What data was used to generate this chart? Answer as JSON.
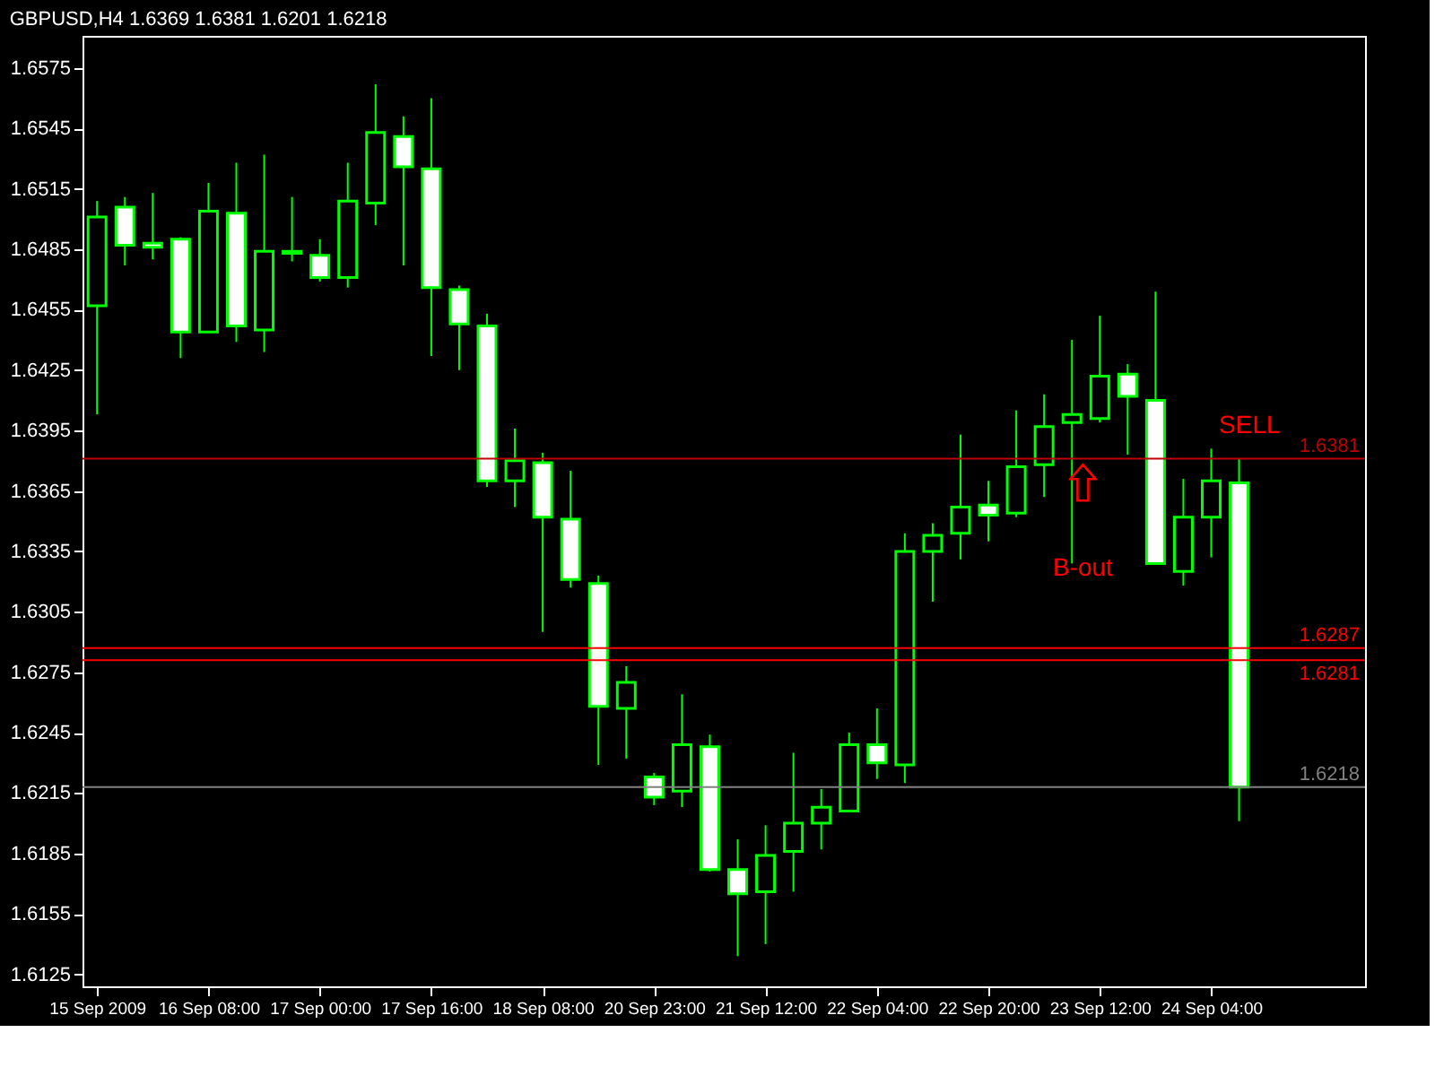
{
  "chart_data": {
    "type": "candlestick",
    "title": "GBPUSD,H4  1.6369 1.6381 1.6201 1.6218",
    "categories": [
      "15 Sep 2009",
      null,
      null,
      null,
      "16 Sep 08:00",
      null,
      null,
      null,
      "17 Sep 00:00",
      null,
      null,
      null,
      "17 Sep 16:00",
      null,
      null,
      null,
      "18 Sep 08:00",
      null,
      null,
      null,
      "20 Sep 23:00",
      null,
      null,
      null,
      "21 Sep 12:00",
      null,
      null,
      null,
      "22 Sep 04:00",
      null,
      null,
      null,
      "22 Sep 20:00",
      null,
      null,
      null,
      "23 Sep 12:00",
      null,
      null,
      null,
      "24 Sep 04:00",
      null
    ],
    "ohlc": [
      [
        1.6457,
        1.6509,
        1.6403,
        1.6501
      ],
      [
        1.6506,
        1.6511,
        1.6477,
        1.6487
      ],
      [
        1.6488,
        1.6513,
        1.648,
        1.6486
      ],
      [
        1.649,
        1.6491,
        1.6431,
        1.6444
      ],
      [
        1.6444,
        1.6518,
        1.6444,
        1.6504
      ],
      [
        1.6503,
        1.6528,
        1.6439,
        1.6447
      ],
      [
        1.6445,
        1.6532,
        1.6434,
        1.6484
      ],
      [
        1.6484,
        1.6511,
        1.6479,
        1.6483
      ],
      [
        1.6482,
        1.649,
        1.6469,
        1.6471
      ],
      [
        1.6471,
        1.6528,
        1.6466,
        1.6509
      ],
      [
        1.6508,
        1.6567,
        1.6497,
        1.6543
      ],
      [
        1.6541,
        1.6551,
        1.6477,
        1.6526
      ],
      [
        1.6525,
        1.656,
        1.6432,
        1.6466
      ],
      [
        1.6465,
        1.6467,
        1.6425,
        1.6448
      ],
      [
        1.6447,
        1.6453,
        1.6367,
        1.637
      ],
      [
        1.637,
        1.6396,
        1.6357,
        1.638
      ],
      [
        1.6379,
        1.6384,
        1.6295,
        1.6352
      ],
      [
        1.6351,
        1.6375,
        1.6317,
        1.6321
      ],
      [
        1.6319,
        1.6323,
        1.6229,
        1.6258
      ],
      [
        1.6257,
        1.6278,
        1.6232,
        1.627
      ],
      [
        1.6223,
        1.6225,
        1.6209,
        1.6213
      ],
      [
        1.6216,
        1.6264,
        1.6208,
        1.6239
      ],
      [
        1.6238,
        1.6244,
        1.6176,
        1.6177
      ],
      [
        1.6177,
        1.6192,
        1.6134,
        1.6165
      ],
      [
        1.6166,
        1.6199,
        1.614,
        1.6184
      ],
      [
        1.6186,
        1.6235,
        1.6166,
        1.62
      ],
      [
        1.62,
        1.6217,
        1.6187,
        1.6208
      ],
      [
        1.6206,
        1.6245,
        1.6206,
        1.6239
      ],
      [
        1.6239,
        1.6257,
        1.6222,
        1.623
      ],
      [
        1.6229,
        1.6344,
        1.622,
        1.6335
      ],
      [
        1.6335,
        1.6349,
        1.631,
        1.6343
      ],
      [
        1.6344,
        1.6393,
        1.6331,
        1.6357
      ],
      [
        1.6358,
        1.637,
        1.634,
        1.6353
      ],
      [
        1.6354,
        1.6405,
        1.6352,
        1.6377
      ],
      [
        1.6378,
        1.6413,
        1.6362,
        1.6397
      ],
      [
        1.6399,
        1.644,
        1.6329,
        1.6403
      ],
      [
        1.6401,
        1.6452,
        1.6399,
        1.6422
      ],
      [
        1.6423,
        1.6428,
        1.6383,
        1.6412
      ],
      [
        1.641,
        1.6464,
        1.6329,
        1.6329
      ],
      [
        1.6325,
        1.6371,
        1.6318,
        1.6352
      ],
      [
        1.6352,
        1.6386,
        1.6332,
        1.637
      ],
      [
        1.6369,
        1.6381,
        1.6201,
        1.6218
      ]
    ],
    "color": "#00ff00",
    "ylim": [
      1.6119,
      1.6591
    ],
    "yticks": [
      1.6125,
      1.6155,
      1.6185,
      1.6215,
      1.6245,
      1.6275,
      1.6305,
      1.6335,
      1.6365,
      1.6395,
      1.6425,
      1.6455,
      1.6485,
      1.6515,
      1.6545,
      1.6575
    ],
    "ref_lines": [
      {
        "axis": "y",
        "value": 1.6381,
        "label": "1.6381",
        "color": "#c00000"
      },
      {
        "axis": "y",
        "value": 1.6287,
        "label": "1.6287",
        "color": "#ff0000"
      },
      {
        "axis": "y",
        "value": 1.6281,
        "label": "1.6281",
        "color": "#ff0000"
      },
      {
        "axis": "y",
        "value": 1.6218,
        "label": "1.6218",
        "color": "#808080"
      }
    ],
    "annotations": [
      "SELL",
      "B-out"
    ]
  }
}
